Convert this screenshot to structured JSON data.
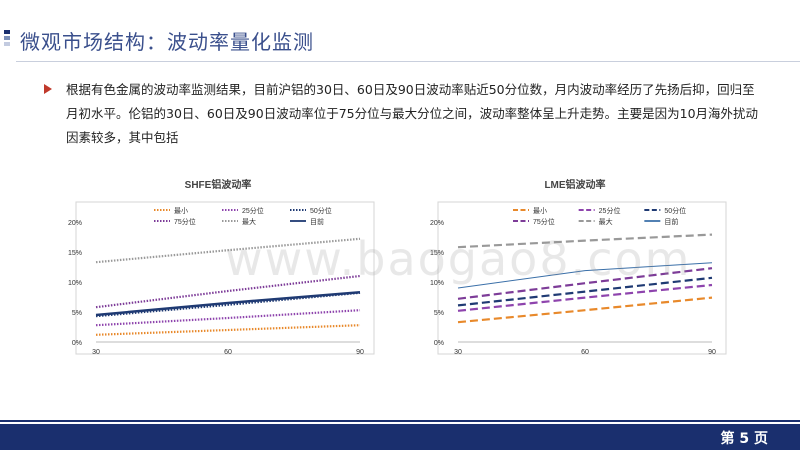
{
  "header": {
    "title": "微观市场结构：波动率量化监测"
  },
  "bullet": {
    "text": "根据有色金属的波动率监测结果，目前沪铝的30日、60日及90日波动率贴近50分位数，月内波动率经历了先扬后抑，回归至月初水平。伦铝的30日、60日及90日波动率位于75分位与最大分位之间，波动率整体呈上升走势。主要是因为10月海外扰动因素较多，其中包括"
  },
  "watermark": "www.baogao8.com",
  "footer": {
    "page_label": "第 5 页"
  },
  "chart_data": [
    {
      "type": "line",
      "title": "SHFE铝波动率",
      "x": [
        30,
        60,
        90
      ],
      "xticks": [
        "30",
        "60",
        "90"
      ],
      "yticks": [
        "0%",
        "5%",
        "10%",
        "15%",
        "20%"
      ],
      "ylim": [
        0,
        20
      ],
      "yunit": "%",
      "grid": false,
      "legend": "top",
      "series": [
        {
          "name": "最小",
          "values": [
            1.2,
            2.0,
            2.8
          ],
          "color": "#e8892b",
          "style": "dotted"
        },
        {
          "name": "25分位",
          "values": [
            2.8,
            4.0,
            5.3
          ],
          "color": "#8e44ad",
          "style": "dotted"
        },
        {
          "name": "50分位",
          "values": [
            4.3,
            6.2,
            8.2
          ],
          "color": "#1f3a73",
          "style": "dotted"
        },
        {
          "name": "75分位",
          "values": [
            5.8,
            8.5,
            11.0
          ],
          "color": "#7d3c98",
          "style": "dotted"
        },
        {
          "name": "最大",
          "values": [
            13.3,
            15.3,
            17.2
          ],
          "color": "#999999",
          "style": "dotted"
        },
        {
          "name": "目前",
          "values": [
            4.5,
            6.5,
            8.3
          ],
          "color": "#1f3a73",
          "style": "solid"
        }
      ]
    },
    {
      "type": "line",
      "title": "LME铝波动率",
      "x": [
        30,
        60,
        90
      ],
      "xticks": [
        "30",
        "60",
        "90"
      ],
      "yticks": [
        "0%",
        "5%",
        "10%",
        "15%",
        "20%"
      ],
      "ylim": [
        0,
        20
      ],
      "yunit": "%",
      "grid": false,
      "legend": "top",
      "series": [
        {
          "name": "最小",
          "values": [
            3.3,
            5.3,
            7.4
          ],
          "color": "#e8892b",
          "style": "dashed"
        },
        {
          "name": "25分位",
          "values": [
            5.2,
            7.4,
            9.5
          ],
          "color": "#8e44ad",
          "style": "dashed"
        },
        {
          "name": "50分位",
          "values": [
            6.1,
            8.4,
            10.7
          ],
          "color": "#1f3a73",
          "style": "dashed"
        },
        {
          "name": "75分位",
          "values": [
            7.2,
            9.8,
            12.3
          ],
          "color": "#7d3c98",
          "style": "dashed"
        },
        {
          "name": "最大",
          "values": [
            15.8,
            16.9,
            17.9
          ],
          "color": "#999999",
          "style": "dashed"
        },
        {
          "name": "目前",
          "values": [
            9.0,
            11.9,
            13.2
          ],
          "color": "#3a6fa8",
          "style": "solid"
        }
      ]
    }
  ]
}
